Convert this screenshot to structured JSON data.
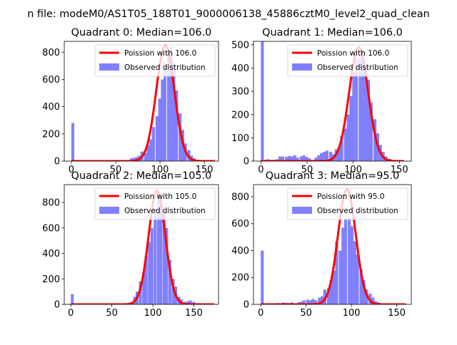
{
  "figure": {
    "suptitle": "n file: modeM0/AS1T05_188T01_9000006138_45886cztM0_level2_quad_clean"
  },
  "colors": {
    "histogram": "#8080ff",
    "poisson": "#ff0000",
    "axes": "#000000"
  },
  "chart_data": [
    {
      "type": "bar",
      "title": "Quadrant 0: Median=106.0",
      "xlim": [
        -8,
        166
      ],
      "ylim": [
        0,
        880
      ],
      "xticks": [
        0,
        50,
        100,
        150
      ],
      "yticks": [
        0,
        200,
        400,
        600,
        800
      ],
      "legend": "top-right",
      "series": [
        {
          "name": "Poission with 106.0",
          "kind": "line",
          "mean": 106.0,
          "peak": 850,
          "sigma": 10.3,
          "range": [
            0,
            162
          ]
        },
        {
          "name": "Observed distribution",
          "kind": "histogram",
          "bin_width": 3.3,
          "bins": [
            [
              0,
              280
            ],
            [
              66,
              20
            ],
            [
              69,
              25
            ],
            [
              72,
              30
            ],
            [
              75,
              40
            ],
            [
              78,
              70
            ],
            [
              82,
              60
            ],
            [
              85,
              120
            ],
            [
              88,
              160
            ],
            [
              91,
              250
            ],
            [
              95,
              330
            ],
            [
              98,
              460
            ],
            [
              101,
              600
            ],
            [
              104,
              720
            ],
            [
              108,
              800
            ],
            [
              111,
              840
            ],
            [
              114,
              720
            ],
            [
              117,
              520
            ],
            [
              121,
              350
            ],
            [
              124,
              230
            ],
            [
              127,
              130
            ],
            [
              131,
              80
            ],
            [
              134,
              40
            ],
            [
              137,
              20
            ],
            [
              140,
              10
            ]
          ]
        }
      ]
    },
    {
      "type": "bar",
      "title": "Quadrant 1: Median=106.0",
      "xlim": [
        -8,
        163
      ],
      "ylim": [
        0,
        515
      ],
      "xticks": [
        0,
        50,
        100,
        150
      ],
      "yticks": [
        0,
        100,
        200,
        300,
        400,
        500
      ],
      "legend": "top-right",
      "series": [
        {
          "name": "Poission with 106.0",
          "kind": "line",
          "mean": 106.0,
          "peak": 490,
          "sigma": 10.3,
          "range": [
            0,
            155
          ]
        },
        {
          "name": "Observed distribution",
          "kind": "histogram",
          "bin_width": 3.2,
          "bins": [
            [
              0,
              515
            ],
            [
              3,
              5
            ],
            [
              6,
              8
            ],
            [
              10,
              6
            ],
            [
              13,
              5
            ],
            [
              16,
              8
            ],
            [
              19,
              20
            ],
            [
              22,
              20
            ],
            [
              26,
              18
            ],
            [
              29,
              22
            ],
            [
              32,
              20
            ],
            [
              35,
              25
            ],
            [
              38,
              15
            ],
            [
              42,
              20
            ],
            [
              45,
              25
            ],
            [
              48,
              18
            ],
            [
              51,
              12
            ],
            [
              54,
              5
            ],
            [
              58,
              15
            ],
            [
              61,
              25
            ],
            [
              64,
              35
            ],
            [
              67,
              40
            ],
            [
              70,
              45
            ],
            [
              74,
              40
            ],
            [
              77,
              30
            ],
            [
              80,
              50
            ],
            [
              83,
              60
            ],
            [
              86,
              110
            ],
            [
              90,
              140
            ],
            [
              93,
              200
            ],
            [
              96,
              280
            ],
            [
              99,
              380
            ],
            [
              102,
              440
            ],
            [
              106,
              450
            ],
            [
              109,
              470
            ],
            [
              112,
              410
            ],
            [
              115,
              350
            ],
            [
              118,
              250
            ],
            [
              122,
              180
            ],
            [
              125,
              120
            ],
            [
              128,
              70
            ],
            [
              131,
              40
            ],
            [
              134,
              20
            ],
            [
              138,
              10
            ]
          ]
        }
      ]
    },
    {
      "type": "bar",
      "title": "Quadrant 2: Median=105.0",
      "xlim": [
        -8,
        180
      ],
      "ylim": [
        0,
        940
      ],
      "xticks": [
        0,
        50,
        100,
        150
      ],
      "yticks": [
        0,
        200,
        400,
        600,
        800
      ],
      "legend": "top-right",
      "series": [
        {
          "name": "Poission with 105.0",
          "kind": "line",
          "mean": 105.0,
          "peak": 890,
          "sigma": 10.2,
          "range": [
            0,
            175
          ]
        },
        {
          "name": "Observed distribution",
          "kind": "histogram",
          "bin_width": 3.6,
          "bins": [
            [
              0,
              80
            ],
            [
              65,
              5
            ],
            [
              68,
              8
            ],
            [
              72,
              15
            ],
            [
              76,
              60
            ],
            [
              79,
              100
            ],
            [
              83,
              180
            ],
            [
              87,
              250
            ],
            [
              90,
              380
            ],
            [
              94,
              490
            ],
            [
              97,
              600
            ],
            [
              101,
              750
            ],
            [
              105,
              880
            ],
            [
              108,
              840
            ],
            [
              112,
              740
            ],
            [
              115,
              600
            ],
            [
              119,
              350
            ],
            [
              123,
              200
            ],
            [
              126,
              140
            ],
            [
              130,
              60
            ],
            [
              133,
              40
            ],
            [
              137,
              20
            ],
            [
              141,
              25
            ],
            [
              144,
              30
            ],
            [
              148,
              20
            ],
            [
              151,
              10
            ],
            [
              155,
              5
            ]
          ]
        }
      ]
    },
    {
      "type": "bar",
      "title": "Quadrant 3: Median=95.0",
      "xlim": [
        -8,
        166
      ],
      "ylim": [
        0,
        890
      ],
      "xticks": [
        0,
        50,
        100,
        150
      ],
      "yticks": [
        0,
        200,
        400,
        600,
        800
      ],
      "legend": "top-right",
      "series": [
        {
          "name": "Poission with 95.0",
          "kind": "line",
          "mean": 95.0,
          "peak": 855,
          "sigma": 9.8,
          "range": [
            0,
            160
          ]
        },
        {
          "name": "Observed distribution",
          "kind": "histogram",
          "bin_width": 3.3,
          "bins": [
            [
              0,
              400
            ],
            [
              3,
              5
            ],
            [
              7,
              5
            ],
            [
              10,
              8
            ],
            [
              13,
              5
            ],
            [
              17,
              10
            ],
            [
              20,
              8
            ],
            [
              23,
              15
            ],
            [
              27,
              12
            ],
            [
              30,
              10
            ],
            [
              33,
              15
            ],
            [
              36,
              8
            ],
            [
              40,
              15
            ],
            [
              43,
              20
            ],
            [
              46,
              30
            ],
            [
              50,
              35
            ],
            [
              53,
              30
            ],
            [
              56,
              40
            ],
            [
              59,
              30
            ],
            [
              63,
              50
            ],
            [
              66,
              60
            ],
            [
              69,
              110
            ],
            [
              73,
              120
            ],
            [
              76,
              180
            ],
            [
              79,
              250
            ],
            [
              82,
              470
            ],
            [
              86,
              400
            ],
            [
              89,
              570
            ],
            [
              92,
              640
            ],
            [
              96,
              640
            ],
            [
              99,
              580
            ],
            [
              102,
              470
            ],
            [
              105,
              370
            ],
            [
              109,
              260
            ],
            [
              112,
              180
            ],
            [
              115,
              110
            ],
            [
              119,
              80
            ],
            [
              122,
              50
            ],
            [
              125,
              25
            ],
            [
              128,
              15
            ],
            [
              132,
              8
            ]
          ]
        }
      ]
    }
  ]
}
